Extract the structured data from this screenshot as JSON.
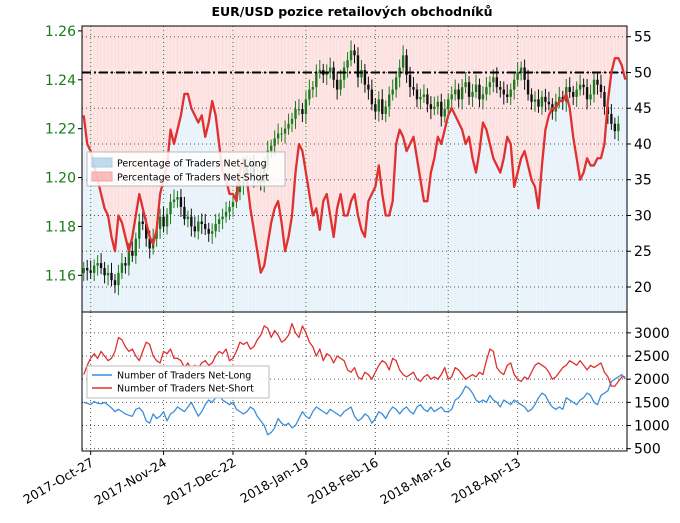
{
  "chart_data": [
    {
      "type": "line",
      "panel": "top",
      "title": "EUR/USD pozice retailových obchodníků",
      "left_axis": {
        "ticks": [
          "1.16",
          "1.18",
          "1.20",
          "1.22",
          "1.24",
          "1.26"
        ],
        "ylim": [
          1.145,
          1.262
        ],
        "color": "#1a7a1a"
      },
      "right_axis": {
        "ticks": [
          "20",
          "25",
          "30",
          "35",
          "40",
          "45",
          "50",
          "55"
        ],
        "ylim": [
          16.5,
          56.5
        ]
      },
      "reference_line": {
        "axis": "right",
        "value": 50,
        "style": "dash-dot",
        "color": "#000000"
      },
      "legend": {
        "position": "center-left",
        "entries": [
          {
            "label": "Percentage of Traders Net-Long",
            "color": "#a6cde8"
          },
          {
            "label": "Percentage of Traders Net-Short",
            "color": "#f5a3a3"
          }
        ]
      },
      "x_tick_labels": [
        "2017-Oct-27",
        "2017-Nov-24",
        "2017-Dec-22",
        "2018-Jan-19",
        "2018-Feb-16",
        "2018-Mar-16",
        "2018-Apr-13"
      ],
      "grid": true,
      "series": [
        {
          "name": "Percentage of Traders Net-Short",
          "axis": "right",
          "color": "#e03030",
          "values": [
            44,
            40,
            39,
            37,
            35,
            33,
            31,
            30,
            27,
            25,
            30,
            29,
            27,
            25,
            27,
            30,
            33,
            31,
            29,
            27,
            26,
            28,
            33,
            35,
            37,
            42,
            40,
            42,
            44,
            47,
            47,
            45,
            44,
            43,
            44,
            41,
            43,
            46,
            44,
            40,
            36,
            35,
            33,
            33,
            32,
            36,
            38,
            35,
            31,
            28,
            25,
            22,
            23,
            26,
            29,
            31,
            32,
            29,
            25,
            27,
            30,
            36,
            40,
            39,
            36,
            33,
            30,
            31,
            28,
            32,
            33,
            30,
            27,
            31,
            33,
            30,
            30,
            32,
            33,
            30,
            28,
            27,
            32,
            33,
            34,
            37,
            33,
            30,
            30,
            32,
            40,
            42,
            41,
            39,
            40,
            41,
            38,
            35,
            32,
            32,
            36,
            38,
            41,
            40,
            42,
            44,
            45,
            44,
            43,
            42,
            40,
            41,
            38,
            36,
            39,
            43,
            42,
            40,
            38,
            37,
            36,
            38,
            41,
            40,
            34,
            36,
            38,
            39,
            37,
            35,
            34,
            31,
            37,
            42,
            44,
            45,
            45,
            46,
            46,
            47,
            45,
            41,
            38,
            35,
            36,
            38,
            37,
            37,
            38,
            38,
            40,
            46,
            50,
            52,
            52,
            51,
            49
          ]
        },
        {
          "name": "EUR/USD",
          "axis": "left",
          "style": "candlestick",
          "color_up": "#1f7a1f",
          "color_down": "#111111",
          "close": [
            1.163,
            1.162,
            1.161,
            1.164,
            1.165,
            1.163,
            1.16,
            1.161,
            1.158,
            1.156,
            1.161,
            1.165,
            1.164,
            1.17,
            1.168,
            1.175,
            1.182,
            1.181,
            1.175,
            1.171,
            1.175,
            1.179,
            1.184,
            1.18,
            1.185,
            1.19,
            1.191,
            1.192,
            1.188,
            1.183,
            1.184,
            1.18,
            1.178,
            1.182,
            1.181,
            1.179,
            1.177,
            1.178,
            1.181,
            1.183,
            1.184,
            1.186,
            1.188,
            1.19,
            1.194,
            1.197,
            1.201,
            1.205,
            1.206,
            1.2,
            1.201,
            1.198,
            1.205,
            1.211,
            1.213,
            1.216,
            1.218,
            1.218,
            1.22,
            1.222,
            1.224,
            1.228,
            1.228,
            1.226,
            1.232,
            1.236,
            1.237,
            1.243,
            1.244,
            1.242,
            1.243,
            1.245,
            1.24,
            1.236,
            1.24,
            1.245,
            1.248,
            1.252,
            1.25,
            1.241,
            1.244,
            1.238,
            1.236,
            1.23,
            1.227,
            1.232,
            1.226,
            1.229,
            1.234,
            1.236,
            1.241,
            1.245,
            1.25,
            1.242,
            1.237,
            1.236,
            1.232,
            1.233,
            1.234,
            1.23,
            1.228,
            1.229,
            1.231,
            1.225,
            1.228,
            1.232,
            1.234,
            1.236,
            1.232,
            1.237,
            1.239,
            1.233,
            1.235,
            1.238,
            1.232,
            1.234,
            1.237,
            1.239,
            1.241,
            1.237,
            1.236,
            1.234,
            1.233,
            1.236,
            1.24,
            1.243,
            1.245,
            1.24,
            1.234,
            1.231,
            1.232,
            1.229,
            1.233,
            1.231,
            1.23,
            1.227,
            1.231,
            1.233,
            1.231,
            1.237,
            1.235,
            1.233,
            1.236,
            1.238,
            1.237,
            1.232,
            1.234,
            1.24,
            1.238,
            1.235,
            1.229,
            1.226,
            1.222,
            1.219,
            1.222
          ]
        }
      ]
    },
    {
      "type": "line",
      "panel": "bottom",
      "right_axis": {
        "ticks": [
          "500",
          "1000",
          "1500",
          "2000",
          "2500",
          "3000"
        ],
        "ylim": [
          450,
          3450
        ]
      },
      "legend": {
        "position": "center-left",
        "entries": [
          {
            "label": "Number of Traders Net-Long",
            "color": "#3a8fd9"
          },
          {
            "label": "Number of Traders Net-Short",
            "color": "#e03030"
          }
        ]
      },
      "grid": true,
      "series": [
        {
          "name": "Number of Traders Net-Long",
          "color": "#3a8fd9",
          "values": [
            1500,
            1480,
            1450,
            1520,
            1480,
            1470,
            1500,
            1440,
            1380,
            1300,
            1350,
            1300,
            1250,
            1220,
            1200,
            1350,
            1380,
            1300,
            1100,
            1050,
            1250,
            1150,
            1200,
            1300,
            1100,
            1250,
            1300,
            1400,
            1350,
            1300,
            1400,
            1500,
            1350,
            1200,
            1300,
            1450,
            1550,
            1500,
            1600,
            1650,
            1550,
            1500,
            1450,
            1500,
            1350,
            1300,
            1250,
            1300,
            1400,
            1350,
            1200,
            1100,
            1000,
            800,
            850,
            950,
            1150,
            1050,
            1000,
            1050,
            950,
            1000,
            1150,
            1300,
            1200,
            1150,
            1300,
            1400,
            1350,
            1300,
            1250,
            1350,
            1300,
            1250,
            1200,
            1300,
            1350,
            1400,
            1200,
            1100,
            1150,
            1250,
            1200,
            1050,
            1150,
            1300,
            1250,
            1150,
            1300,
            1400,
            1350,
            1250,
            1350,
            1400,
            1300,
            1250,
            1400,
            1450,
            1350,
            1300,
            1400,
            1300,
            1350,
            1400,
            1300,
            1300,
            1350,
            1550,
            1600,
            1700,
            1850,
            1800,
            1700,
            1550,
            1500,
            1550,
            1500,
            1650,
            1550,
            1500,
            1400,
            1550,
            1500,
            1450,
            1550,
            1500,
            1450,
            1400,
            1300,
            1350,
            1450,
            1600,
            1700,
            1650,
            1500,
            1400,
            1350,
            1400,
            1350,
            1600,
            1550,
            1500,
            1450,
            1550,
            1600,
            1700,
            1650,
            1500,
            1450,
            1650,
            1700,
            1750,
            1950,
            2000,
            2050,
            2100,
            2000
          ]
        },
        {
          "name": "Number of Traders Net-Short",
          "color": "#e03030",
          "values": [
            2100,
            2300,
            2450,
            2550,
            2450,
            2600,
            2500,
            2400,
            2450,
            2600,
            2900,
            2850,
            2700,
            2600,
            2650,
            2500,
            2400,
            2600,
            2800,
            2750,
            2500,
            2400,
            2350,
            2600,
            2550,
            2650,
            2450,
            2450,
            2400,
            2250,
            2350,
            2200,
            2300,
            2250,
            2350,
            2400,
            2300,
            2350,
            2500,
            2600,
            2550,
            2650,
            2400,
            2450,
            2600,
            2800,
            2750,
            2800,
            2650,
            2700,
            2850,
            2950,
            3150,
            3100,
            2900,
            3050,
            2950,
            2800,
            2850,
            2950,
            3200,
            3000,
            2900,
            3150,
            3000,
            2800,
            2700,
            2500,
            2650,
            2400,
            2550,
            2500,
            2350,
            2500,
            2450,
            2400,
            2200,
            2150,
            2250,
            2050,
            2000,
            2150,
            2100,
            2000,
            2150,
            2300,
            2400,
            2350,
            2200,
            2450,
            2400,
            2200,
            2100,
            2050,
            2100,
            2150,
            2000,
            1950,
            2050,
            2100,
            2000,
            2050,
            2000,
            2100,
            2250,
            2000,
            2050,
            2250,
            2200,
            2100,
            2000,
            2050,
            2100,
            2050,
            2150,
            2100,
            2400,
            2650,
            2600,
            2250,
            2150,
            2100,
            2300,
            2350,
            2100,
            2000,
            1950,
            2050,
            2000,
            2150,
            2300,
            2350,
            2300,
            2250,
            2150,
            2000,
            2050,
            2150,
            2250,
            2300,
            2400,
            2350,
            2300,
            2400,
            2300,
            2200,
            2300,
            2250,
            2300,
            2350,
            2150,
            2050,
            1850,
            1850,
            1950,
            2050,
            2050
          ]
        }
      ]
    }
  ]
}
